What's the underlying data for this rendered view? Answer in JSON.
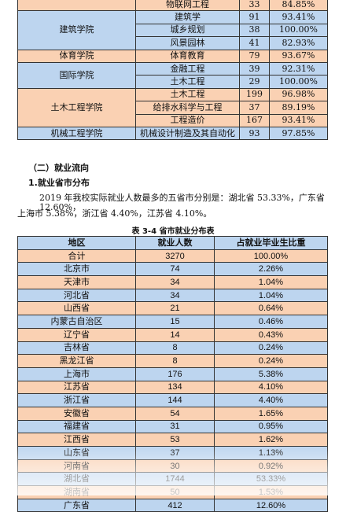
{
  "college_table": {
    "rows": [
      {
        "college": "",
        "major": "物联网工程",
        "count": "33",
        "rate": "84.85%",
        "bg": "#fad1b3"
      },
      {
        "college": "建筑学院",
        "rowspan": 3,
        "major": "建筑学",
        "count": "91",
        "rate": "93.41%",
        "bg": "#bdd5ef"
      },
      {
        "major": "城乡规划",
        "count": "38",
        "rate": "100.00%",
        "bg": "#bdd5ef"
      },
      {
        "major": "风景园林",
        "count": "41",
        "rate": "82.93%",
        "bg": "#bdd5ef"
      },
      {
        "college": "体育学院",
        "rowspan": 1,
        "major": "体育教育",
        "count": "79",
        "rate": "93.67%",
        "bg": "#fad1b3"
      },
      {
        "college": "国际学院",
        "rowspan": 2,
        "major": "金融工程",
        "count": "39",
        "rate": "92.31%",
        "bg": "#bdd5ef"
      },
      {
        "major": "土木工程",
        "count": "29",
        "rate": "100.00%",
        "bg": "#bdd5ef"
      },
      {
        "college": "土木工程学院",
        "rowspan": 3,
        "major": "土木工程",
        "count": "199",
        "rate": "96.98%",
        "bg": "#fad1b3"
      },
      {
        "major": "给排水科学与工程",
        "count": "37",
        "rate": "89.19%",
        "bg": "#fad1b3"
      },
      {
        "major": "工程造价",
        "count": "167",
        "rate": "93.41%",
        "bg": "#fad1b3"
      },
      {
        "college": "机械工程学院",
        "rowspan": 1,
        "major": "机械设计制造及其自动化",
        "count": "93",
        "rate": "97.85%",
        "bg": "#bdd5ef"
      }
    ]
  },
  "section_heading": "（二）就业流向",
  "subsection_heading": "1.就业省市分布",
  "paragraph_line1": "2019 年我校实际就业人数最多的五省市分别是：湖北省 53.33%，广东省 12.60%，",
  "paragraph_line2": "上海市 5.38%，浙江省 4.40%，江苏省 4.10%。",
  "table_caption": "表 3-4   省市就业分布表",
  "province_table": {
    "headers": [
      "地区",
      "就业人数",
      "占就业毕业生比重"
    ],
    "rows": [
      {
        "region": "合计",
        "count": "3270",
        "share": "100.00%",
        "bg": "#fad1b3"
      },
      {
        "region": "北京市",
        "count": "74",
        "share": "2.26%",
        "bg": "#bdd5ef"
      },
      {
        "region": "天津市",
        "count": "34",
        "share": "1.04%",
        "bg": "#fad1b3"
      },
      {
        "region": "河北省",
        "count": "34",
        "share": "1.04%",
        "bg": "#bdd5ef"
      },
      {
        "region": "山西省",
        "count": "21",
        "share": "0.64%",
        "bg": "#fad1b3"
      },
      {
        "region": "内蒙古自治区",
        "count": "15",
        "share": "0.46%",
        "bg": "#bdd5ef"
      },
      {
        "region": "辽宁省",
        "count": "14",
        "share": "0.43%",
        "bg": "#fad1b3"
      },
      {
        "region": "吉林省",
        "count": "8",
        "share": "0.24%",
        "bg": "#bdd5ef"
      },
      {
        "region": "黑龙江省",
        "count": "8",
        "share": "0.24%",
        "bg": "#fad1b3"
      },
      {
        "region": "上海市",
        "count": "176",
        "share": "5.38%",
        "bg": "#bdd5ef"
      },
      {
        "region": "江苏省",
        "count": "134",
        "share": "4.10%",
        "bg": "#fad1b3"
      },
      {
        "region": "浙江省",
        "count": "144",
        "share": "4.40%",
        "bg": "#bdd5ef"
      },
      {
        "region": "安徽省",
        "count": "54",
        "share": "1.65%",
        "bg": "#fad1b3"
      },
      {
        "region": "福建省",
        "count": "31",
        "share": "0.95%",
        "bg": "#bdd5ef"
      },
      {
        "region": "江西省",
        "count": "53",
        "share": "1.62%",
        "bg": "#fad1b3"
      },
      {
        "region": "山东省",
        "count": "37",
        "share": "1.13%",
        "bg": "#bdd5ef"
      },
      {
        "region": "河南省",
        "count": "30",
        "share": "0.92%",
        "bg": "#fad1b3"
      },
      {
        "region": "湖北省",
        "count": "1744",
        "share": "53.33%",
        "bg": "#bdd5ef"
      },
      {
        "region": "湖南省",
        "count": "50",
        "share": "1.53%",
        "bg": "#fad1b3"
      },
      {
        "region": "广东省",
        "count": "412",
        "share": "12.60%",
        "bg": "#bdd5ef"
      }
    ]
  }
}
